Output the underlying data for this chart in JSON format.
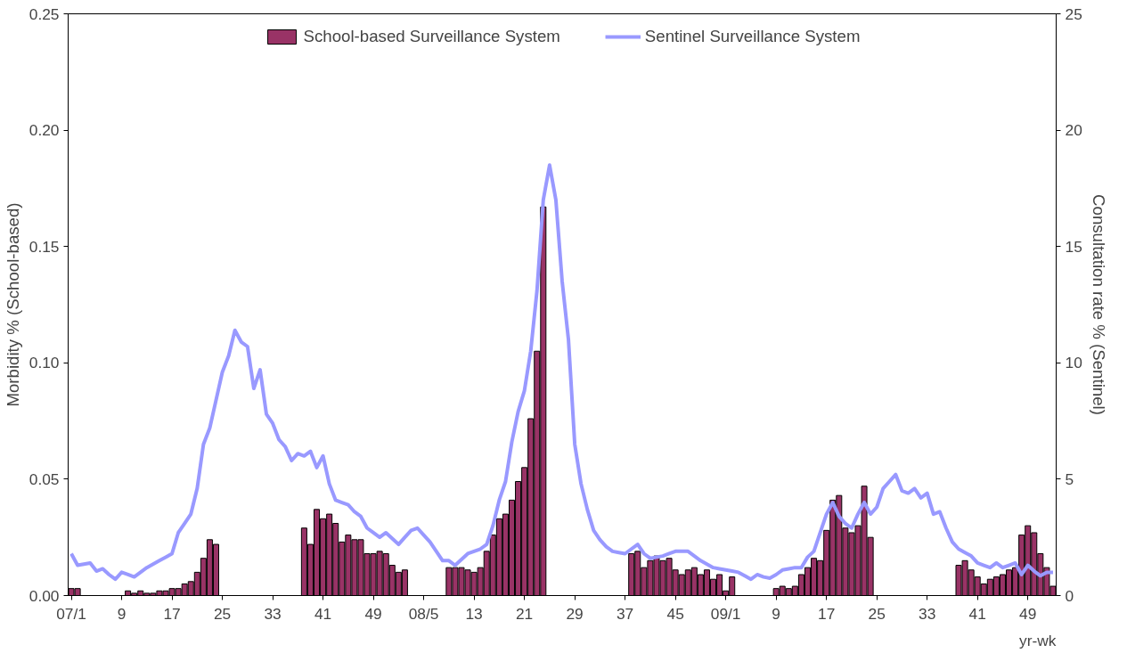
{
  "chart_data": {
    "type": "bar",
    "xlabel": "yr-wk",
    "ylabel": "Morbidity % (School-based)",
    "y2label": "Consultation rate % (Sentinel)",
    "legend": "top",
    "categories": [
      "07/1",
      null,
      null,
      null,
      null,
      null,
      null,
      null,
      "9",
      null,
      null,
      null,
      null,
      null,
      null,
      null,
      "17",
      null,
      null,
      null,
      null,
      null,
      null,
      null,
      "25",
      null,
      null,
      null,
      null,
      null,
      null,
      null,
      "33",
      null,
      null,
      null,
      null,
      null,
      null,
      null,
      "41",
      null,
      null,
      null,
      null,
      null,
      null,
      null,
      "49",
      null,
      null,
      null,
      null,
      null,
      null,
      null,
      "08/5",
      null,
      null,
      null,
      null,
      null,
      null,
      null,
      "13",
      null,
      null,
      null,
      null,
      null,
      null,
      null,
      "21",
      null,
      null,
      null,
      null,
      null,
      null,
      null,
      "29",
      null,
      null,
      null,
      null,
      null,
      null,
      null,
      "37",
      null,
      null,
      null,
      null,
      null,
      null,
      null,
      "45",
      null,
      null,
      null,
      null,
      null,
      null,
      null,
      "09/1",
      null,
      null,
      null,
      null,
      null,
      null,
      null,
      "9",
      null,
      null,
      null,
      null,
      null,
      null,
      null,
      "17",
      null,
      null,
      null,
      null,
      null,
      null,
      null,
      "25",
      null,
      null,
      null,
      null,
      null,
      null,
      null,
      "33",
      null,
      null,
      null,
      null,
      null,
      null,
      null,
      "41",
      null,
      null,
      null,
      null,
      null,
      null,
      null,
      "49",
      null,
      null,
      null,
      null
    ],
    "ylim": [
      0,
      0.25
    ],
    "yticks": [
      {
        "value": 0,
        "label": "0.00"
      },
      {
        "value": 0.05,
        "label": "0.05"
      },
      {
        "value": 0.1,
        "label": "0.10"
      },
      {
        "value": 0.15,
        "label": "0.15"
      },
      {
        "value": 0.2,
        "label": "0.20"
      },
      {
        "value": 0.25,
        "label": "0.25"
      }
    ],
    "y2lim": [
      0,
      25
    ],
    "y2ticks": [
      0,
      5,
      10,
      15,
      20,
      25
    ],
    "series": [
      {
        "name": "School-based Surveillance System",
        "color": "#993366",
        "values": [
          0.003,
          0.003,
          null,
          null,
          null,
          null,
          null,
          null,
          null,
          0.002,
          0.001,
          0.002,
          0.001,
          0.001,
          0.002,
          0.002,
          0.003,
          0.003,
          0.005,
          0.006,
          0.01,
          0.016,
          0.024,
          0.022,
          null,
          null,
          null,
          null,
          null,
          null,
          null,
          null,
          null,
          null,
          null,
          null,
          null,
          0.029,
          0.022,
          0.037,
          0.033,
          0.035,
          0.031,
          0.023,
          0.026,
          0.024,
          0.024,
          0.018,
          0.018,
          0.019,
          0.018,
          0.013,
          0.01,
          0.011,
          null,
          null,
          null,
          null,
          null,
          null,
          0.012,
          0.012,
          0.012,
          0.011,
          0.01,
          0.012,
          0.019,
          0.026,
          0.033,
          0.035,
          0.041,
          0.049,
          0.055,
          0.076,
          0.105,
          0.167,
          null,
          null,
          null,
          null,
          null,
          null,
          null,
          null,
          null,
          null,
          null,
          null,
          null,
          0.018,
          0.019,
          0.012,
          0.015,
          0.017,
          0.015,
          0.016,
          0.011,
          0.009,
          0.011,
          0.012,
          0.009,
          0.011,
          0.007,
          0.009,
          0.002,
          0.008,
          null,
          null,
          null,
          null,
          null,
          null,
          0.003,
          0.004,
          0.003,
          0.004,
          0.009,
          0.012,
          0.016,
          0.015,
          0.028,
          0.041,
          0.043,
          0.029,
          0.027,
          0.03,
          0.047,
          0.025,
          null,
          null,
          null,
          null,
          null,
          null,
          null,
          null,
          null,
          null,
          null,
          null,
          null,
          0.013,
          0.015,
          0.011,
          0.008,
          0.005,
          0.007,
          0.008,
          0.009,
          0.011,
          0.012,
          0.026,
          0.03,
          0.027,
          0.018,
          0.012,
          0.004
        ]
      },
      {
        "name": "Sentinel Surveillance System",
        "type": "line",
        "axis": "y2",
        "color": "#9999ff",
        "values": [
          1.8,
          1.3,
          1.35,
          1.4,
          1.05,
          1.15,
          0.9,
          0.7,
          1.0,
          0.9,
          0.8,
          1.0,
          1.2,
          1.35,
          1.5,
          1.65,
          1.8,
          2.7,
          3.1,
          3.5,
          4.6,
          6.5,
          7.2,
          8.4,
          9.6,
          10.3,
          11.4,
          10.9,
          10.7,
          8.9,
          9.7,
          7.8,
          7.4,
          6.7,
          6.4,
          5.8,
          6.1,
          6.0,
          6.2,
          5.5,
          6.0,
          4.8,
          4.1,
          4.0,
          3.9,
          3.6,
          3.4,
          2.9,
          2.7,
          2.5,
          2.7,
          2.45,
          2.2,
          2.5,
          2.8,
          2.9,
          2.6,
          2.3,
          1.9,
          1.5,
          1.5,
          1.3,
          1.55,
          1.8,
          1.9,
          2.0,
          2.2,
          3.0,
          4.1,
          4.9,
          6.6,
          7.9,
          8.8,
          10.5,
          13.1,
          17.0,
          18.5,
          17.0,
          13.5,
          11.0,
          6.5,
          4.8,
          3.7,
          2.8,
          2.4,
          2.1,
          1.9,
          1.85,
          1.8,
          2.0,
          2.2,
          1.8,
          1.6,
          1.65,
          1.7,
          1.8,
          1.9,
          1.9,
          1.9,
          1.7,
          1.5,
          1.35,
          1.2,
          1.15,
          1.1,
          1.05,
          1.0,
          0.85,
          0.7,
          0.9,
          0.8,
          0.75,
          0.9,
          1.1,
          1.15,
          1.2,
          1.2,
          1.65,
          1.9,
          2.7,
          3.5,
          4.0,
          3.4,
          3.1,
          2.9,
          3.5,
          4.0,
          3.5,
          3.8,
          4.6,
          4.9,
          5.2,
          4.5,
          4.4,
          4.6,
          4.2,
          4.4,
          3.5,
          3.6,
          2.9,
          2.3,
          2.0,
          1.85,
          1.7,
          1.4,
          1.3,
          1.2,
          1.4,
          1.2,
          1.3,
          1.4,
          0.9,
          1.3,
          1.05,
          0.85,
          1.0,
          1.0
        ]
      }
    ]
  }
}
